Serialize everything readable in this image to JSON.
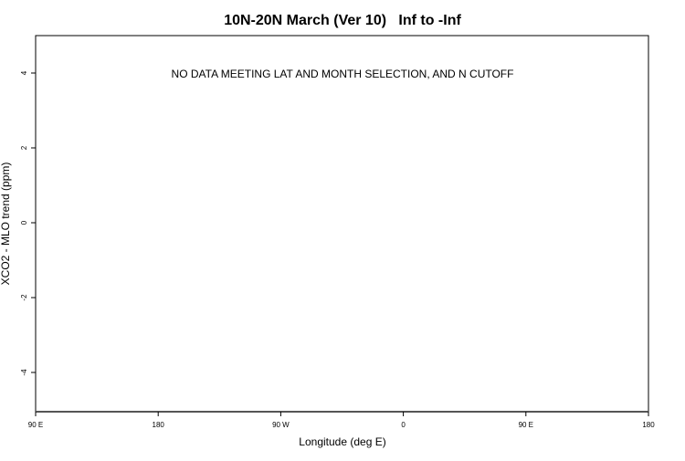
{
  "chart_data": {
    "type": "scatter",
    "title": "10N-20N March (Ver 10)   Inf to -Inf",
    "xlabel": "Longitude (deg E)",
    "ylabel": "XCO2 - MLO trend (ppm)",
    "annotation": "NO DATA MEETING LAT AND MONTH SELECTION, AND N CUTOFF",
    "xlim": [
      90,
      450
    ],
    "ylim": [
      -5,
      5
    ],
    "x_ticks": [
      {
        "value": 90,
        "label": "90 E"
      },
      {
        "value": 180,
        "label": "180"
      },
      {
        "value": 270,
        "label": "90 W"
      },
      {
        "value": 360,
        "label": "0"
      },
      {
        "value": 450,
        "label": "90 E"
      },
      {
        "value": 540,
        "label": "180"
      }
    ],
    "y_ticks": [
      {
        "value": 4,
        "label": "4"
      },
      {
        "value": 2,
        "label": "2"
      },
      {
        "value": 0,
        "label": "0"
      },
      {
        "value": -2,
        "label": "-2"
      },
      {
        "value": -4,
        "label": "-4"
      }
    ],
    "points": [],
    "grid": false,
    "colors": {
      "axis": "#000000",
      "baseline": "#555555"
    }
  }
}
